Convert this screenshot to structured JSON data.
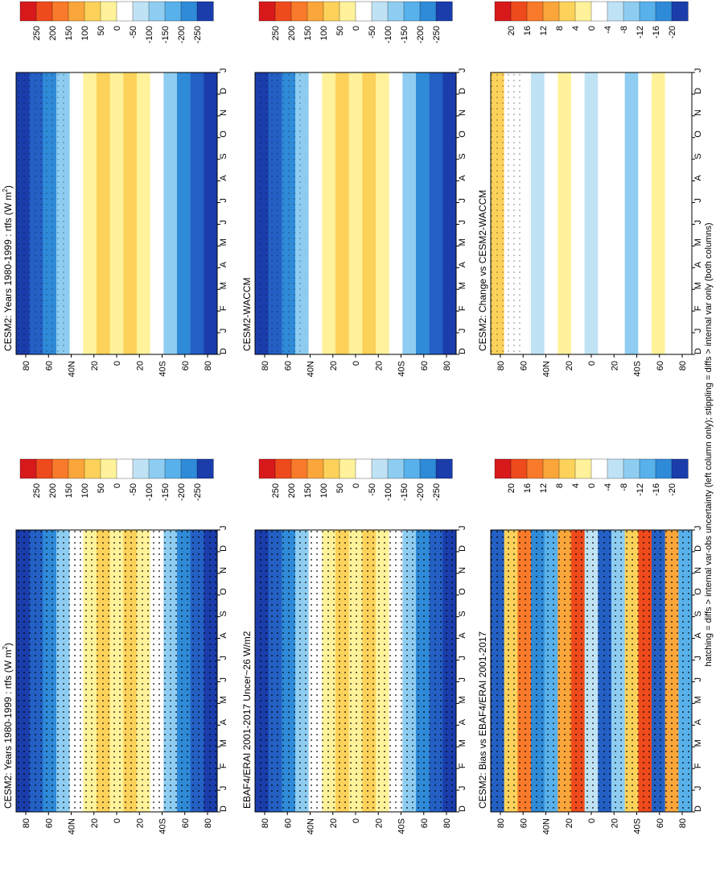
{
  "figure": {
    "footnote": "hatching = diffs > internal var-obs uncertainty (left column only); stippling = diffs > internal var only (both columns)"
  },
  "chart_data": [
    {
      "type": "heatmap",
      "panel": "top-left",
      "title": "CESM2: Years 1980-1999 : rtfs (W m",
      "title_sup": "2",
      "title_tail": ")",
      "x_months": [
        "D",
        "J",
        "F",
        "M",
        "A",
        "M",
        "J",
        "J",
        "A",
        "S",
        "O",
        "N",
        "D",
        "J"
      ],
      "lat_labels": [
        "80",
        "60",
        "40N",
        "20",
        "0",
        "20",
        "40S",
        "60",
        "80"
      ],
      "colorbar": [
        "250",
        "200",
        "150",
        "100",
        "50",
        "0",
        "-50",
        "-100",
        "-150",
        "-200",
        "-250"
      ],
      "band_values": [
        -210,
        -160,
        -110,
        -60,
        -15,
        30,
        55,
        35,
        45,
        25,
        -15,
        -60,
        -110,
        -160,
        -200
      ],
      "stipple": "heavy"
    },
    {
      "type": "heatmap",
      "panel": "top-right",
      "title": "CESM2: Years 1980-1999 : rtfs (W m",
      "title_sup": "2",
      "title_tail": ")",
      "x_months": [
        "D",
        "J",
        "F",
        "M",
        "A",
        "M",
        "J",
        "J",
        "A",
        "S",
        "O",
        "N",
        "D",
        "J"
      ],
      "lat_labels": [
        "80",
        "60",
        "40N",
        "20",
        "0",
        "20",
        "40S",
        "60",
        "80"
      ],
      "colorbar": [
        "250",
        "200",
        "150",
        "100",
        "50",
        "0",
        "-50",
        "-100",
        "-150",
        "-200",
        "-250"
      ],
      "band_values": [
        -210,
        -160,
        -110,
        -60,
        -15,
        30,
        55,
        35,
        45,
        25,
        -15,
        -60,
        -110,
        -160,
        -200
      ],
      "stipple": "light"
    },
    {
      "type": "heatmap",
      "panel": "middle-left",
      "title": "EBAF4/ERAI 2001-2017 Uncer~26 W/m2",
      "title_sup": "",
      "title_tail": "",
      "x_months": [
        "D",
        "J",
        "F",
        "M",
        "A",
        "M",
        "J",
        "J",
        "A",
        "S",
        "O",
        "N",
        "D",
        "J"
      ],
      "lat_labels": [
        "80",
        "60",
        "40N",
        "20",
        "0",
        "20",
        "40S",
        "60",
        "80"
      ],
      "colorbar": [
        "250",
        "200",
        "150",
        "100",
        "50",
        "0",
        "-50",
        "-100",
        "-150",
        "-200",
        "-250"
      ],
      "band_values": [
        -200,
        -160,
        -110,
        -60,
        -15,
        30,
        50,
        30,
        45,
        25,
        -15,
        -60,
        -110,
        -160,
        -190
      ],
      "stipple": "heavy"
    },
    {
      "type": "heatmap",
      "panel": "middle-right",
      "title": "CESM2-WACCM",
      "title_sup": "",
      "title_tail": "",
      "x_months": [
        "D",
        "J",
        "F",
        "M",
        "A",
        "M",
        "J",
        "J",
        "A",
        "S",
        "O",
        "N",
        "D",
        "J"
      ],
      "lat_labels": [
        "80",
        "60",
        "40N",
        "20",
        "0",
        "20",
        "40S",
        "60",
        "80"
      ],
      "colorbar": [
        "250",
        "200",
        "150",
        "100",
        "50",
        "0",
        "-50",
        "-100",
        "-150",
        "-200",
        "-250"
      ],
      "band_values": [
        -210,
        -160,
        -110,
        -60,
        -15,
        30,
        55,
        35,
        45,
        25,
        -15,
        -60,
        -110,
        -160,
        -200
      ],
      "stipple": "light"
    },
    {
      "type": "heatmap",
      "panel": "bottom-left",
      "title": "CESM2: Bias vs EBAF4/ERAI 2001-2017",
      "title_sup": "",
      "title_tail": "",
      "x_months": [
        "D",
        "J",
        "F",
        "M",
        "A",
        "M",
        "J",
        "J",
        "A",
        "S",
        "O",
        "N",
        "D",
        "J"
      ],
      "lat_labels": [
        "80",
        "60",
        "40N",
        "20",
        "0",
        "20",
        "40S",
        "60",
        "80"
      ],
      "colorbar": [
        "20",
        "16",
        "12",
        "8",
        "4",
        "0",
        "-4",
        "-8",
        "-12",
        "-16",
        "-20"
      ],
      "band_values": [
        -14,
        6,
        12,
        -10,
        -6,
        8,
        14,
        -2,
        -12,
        -4,
        6,
        16,
        -12,
        10,
        -6
      ],
      "stipple": "heavy"
    },
    {
      "type": "heatmap",
      "panel": "bottom-right",
      "title": "CESM2: Change vs CESM2-WACCM",
      "title_sup": "",
      "title_tail": "",
      "x_months": [
        "D",
        "J",
        "F",
        "M",
        "A",
        "M",
        "J",
        "J",
        "A",
        "S",
        "O",
        "N",
        "D",
        "J"
      ],
      "lat_labels": [
        "80",
        "60",
        "40N",
        "20",
        "0",
        "20",
        "40S",
        "60",
        "80"
      ],
      "colorbar": [
        "20",
        "16",
        "12",
        "8",
        "4",
        "0",
        "-4",
        "-8",
        "-12",
        "-16",
        "-20"
      ],
      "band_values": [
        4,
        0,
        1,
        -2,
        0,
        3,
        0,
        -2,
        1,
        0,
        -3,
        0,
        2,
        -1,
        0
      ],
      "stipple": "sparse"
    }
  ]
}
